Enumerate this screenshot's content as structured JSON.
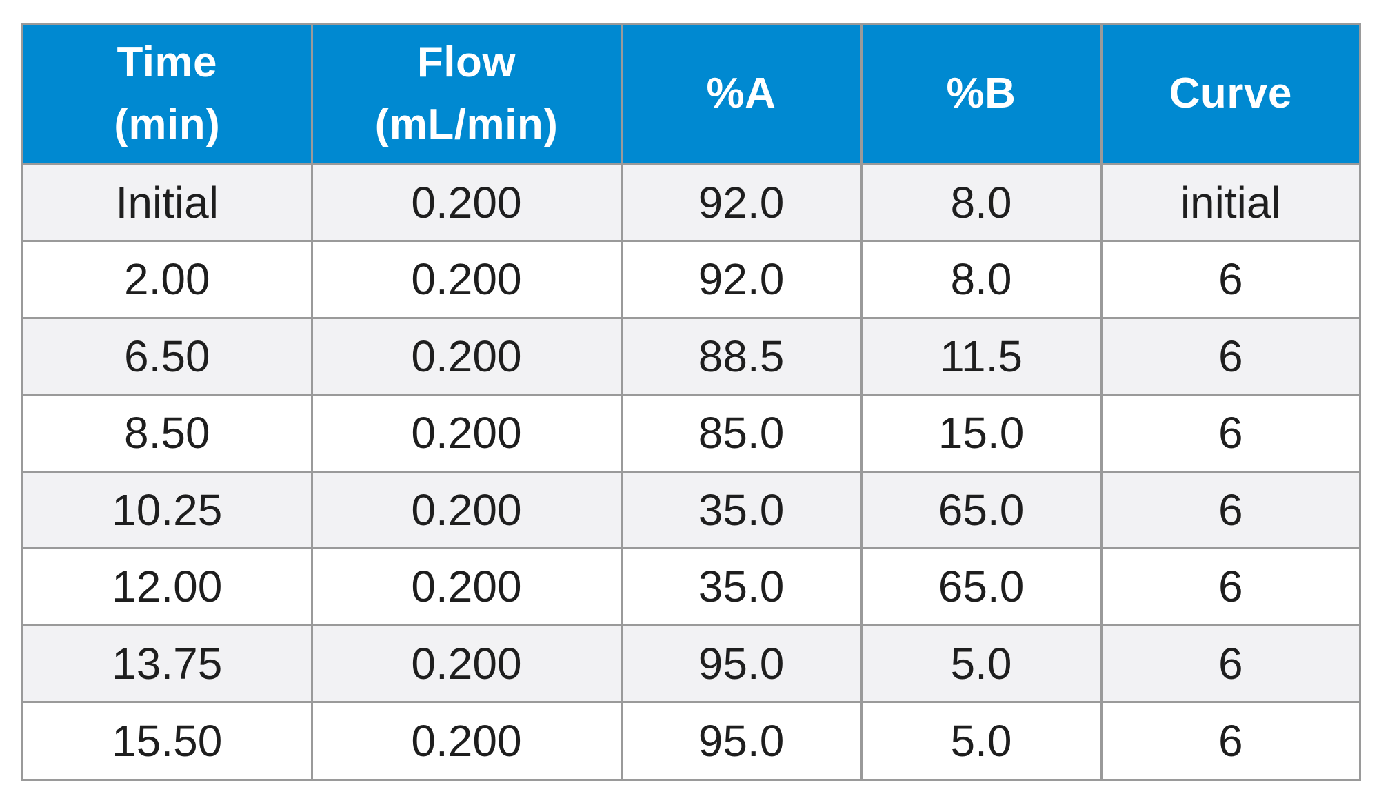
{
  "table": {
    "headers": [
      {
        "line1": "Time",
        "line2": "(min)"
      },
      {
        "line1": "Flow",
        "line2": "(mL/min)"
      },
      {
        "line1": "%A",
        "line2": ""
      },
      {
        "line1": "%B",
        "line2": ""
      },
      {
        "line1": "Curve",
        "line2": ""
      }
    ],
    "rows": [
      [
        "Initial",
        "0.200",
        "92.0",
        "8.0",
        "initial"
      ],
      [
        "2.00",
        "0.200",
        "92.0",
        "8.0",
        "6"
      ],
      [
        "6.50",
        "0.200",
        "88.5",
        "11.5",
        "6"
      ],
      [
        "8.50",
        "0.200",
        "85.0",
        "15.0",
        "6"
      ],
      [
        "10.25",
        "0.200",
        "35.0",
        "65.0",
        "6"
      ],
      [
        "12.00",
        "0.200",
        "35.0",
        "65.0",
        "6"
      ],
      [
        "13.75",
        "0.200",
        "95.0",
        "5.0",
        "6"
      ],
      [
        "15.50",
        "0.200",
        "95.0",
        "5.0",
        "6"
      ]
    ]
  },
  "colors": {
    "header_bg": "#0089d1",
    "header_text": "#ffffff",
    "row_alt_bg": "#f2f2f4",
    "border": "#9a9a9a"
  }
}
